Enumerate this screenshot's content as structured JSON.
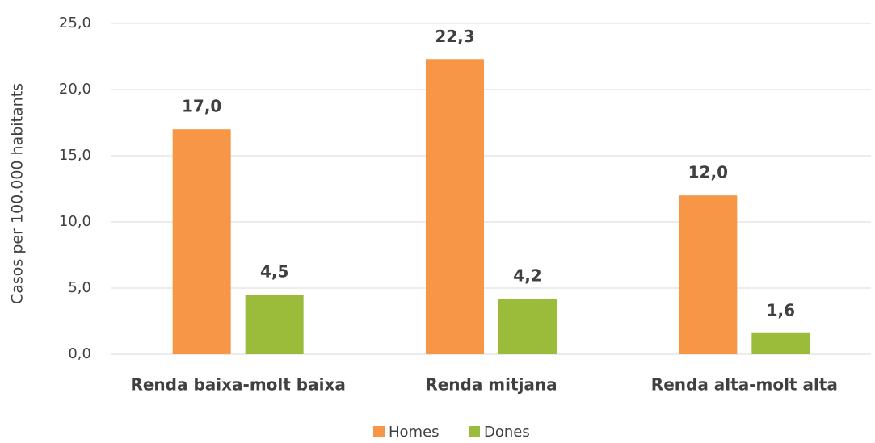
{
  "chart_data": {
    "type": "bar",
    "y_label": "Casos per 100.000 habitants",
    "categories": [
      "Renda baixa-molt baixa",
      "Renda mitjana",
      "Renda alta-molt alta"
    ],
    "series": [
      {
        "name": "Homes",
        "color": "#f79646",
        "values": [
          17.0,
          22.3,
          12.0
        ],
        "value_labels": [
          "17,0",
          "22,3",
          "12,0"
        ]
      },
      {
        "name": "Dones",
        "color": "#9bbb3b",
        "values": [
          4.5,
          4.2,
          1.6
        ],
        "value_labels": [
          "4,5",
          "4,2",
          "1,6"
        ]
      }
    ],
    "ylim": [
      0,
      25
    ],
    "yticks": [
      {
        "value": 0,
        "label": "0,0"
      },
      {
        "value": 5,
        "label": "5,0"
      },
      {
        "value": 10,
        "label": "10,0"
      },
      {
        "value": 15,
        "label": "15,0"
      },
      {
        "value": 20,
        "label": "20,0"
      },
      {
        "value": 25,
        "label": "25,0"
      }
    ],
    "grid": true,
    "legend": "bottom"
  }
}
